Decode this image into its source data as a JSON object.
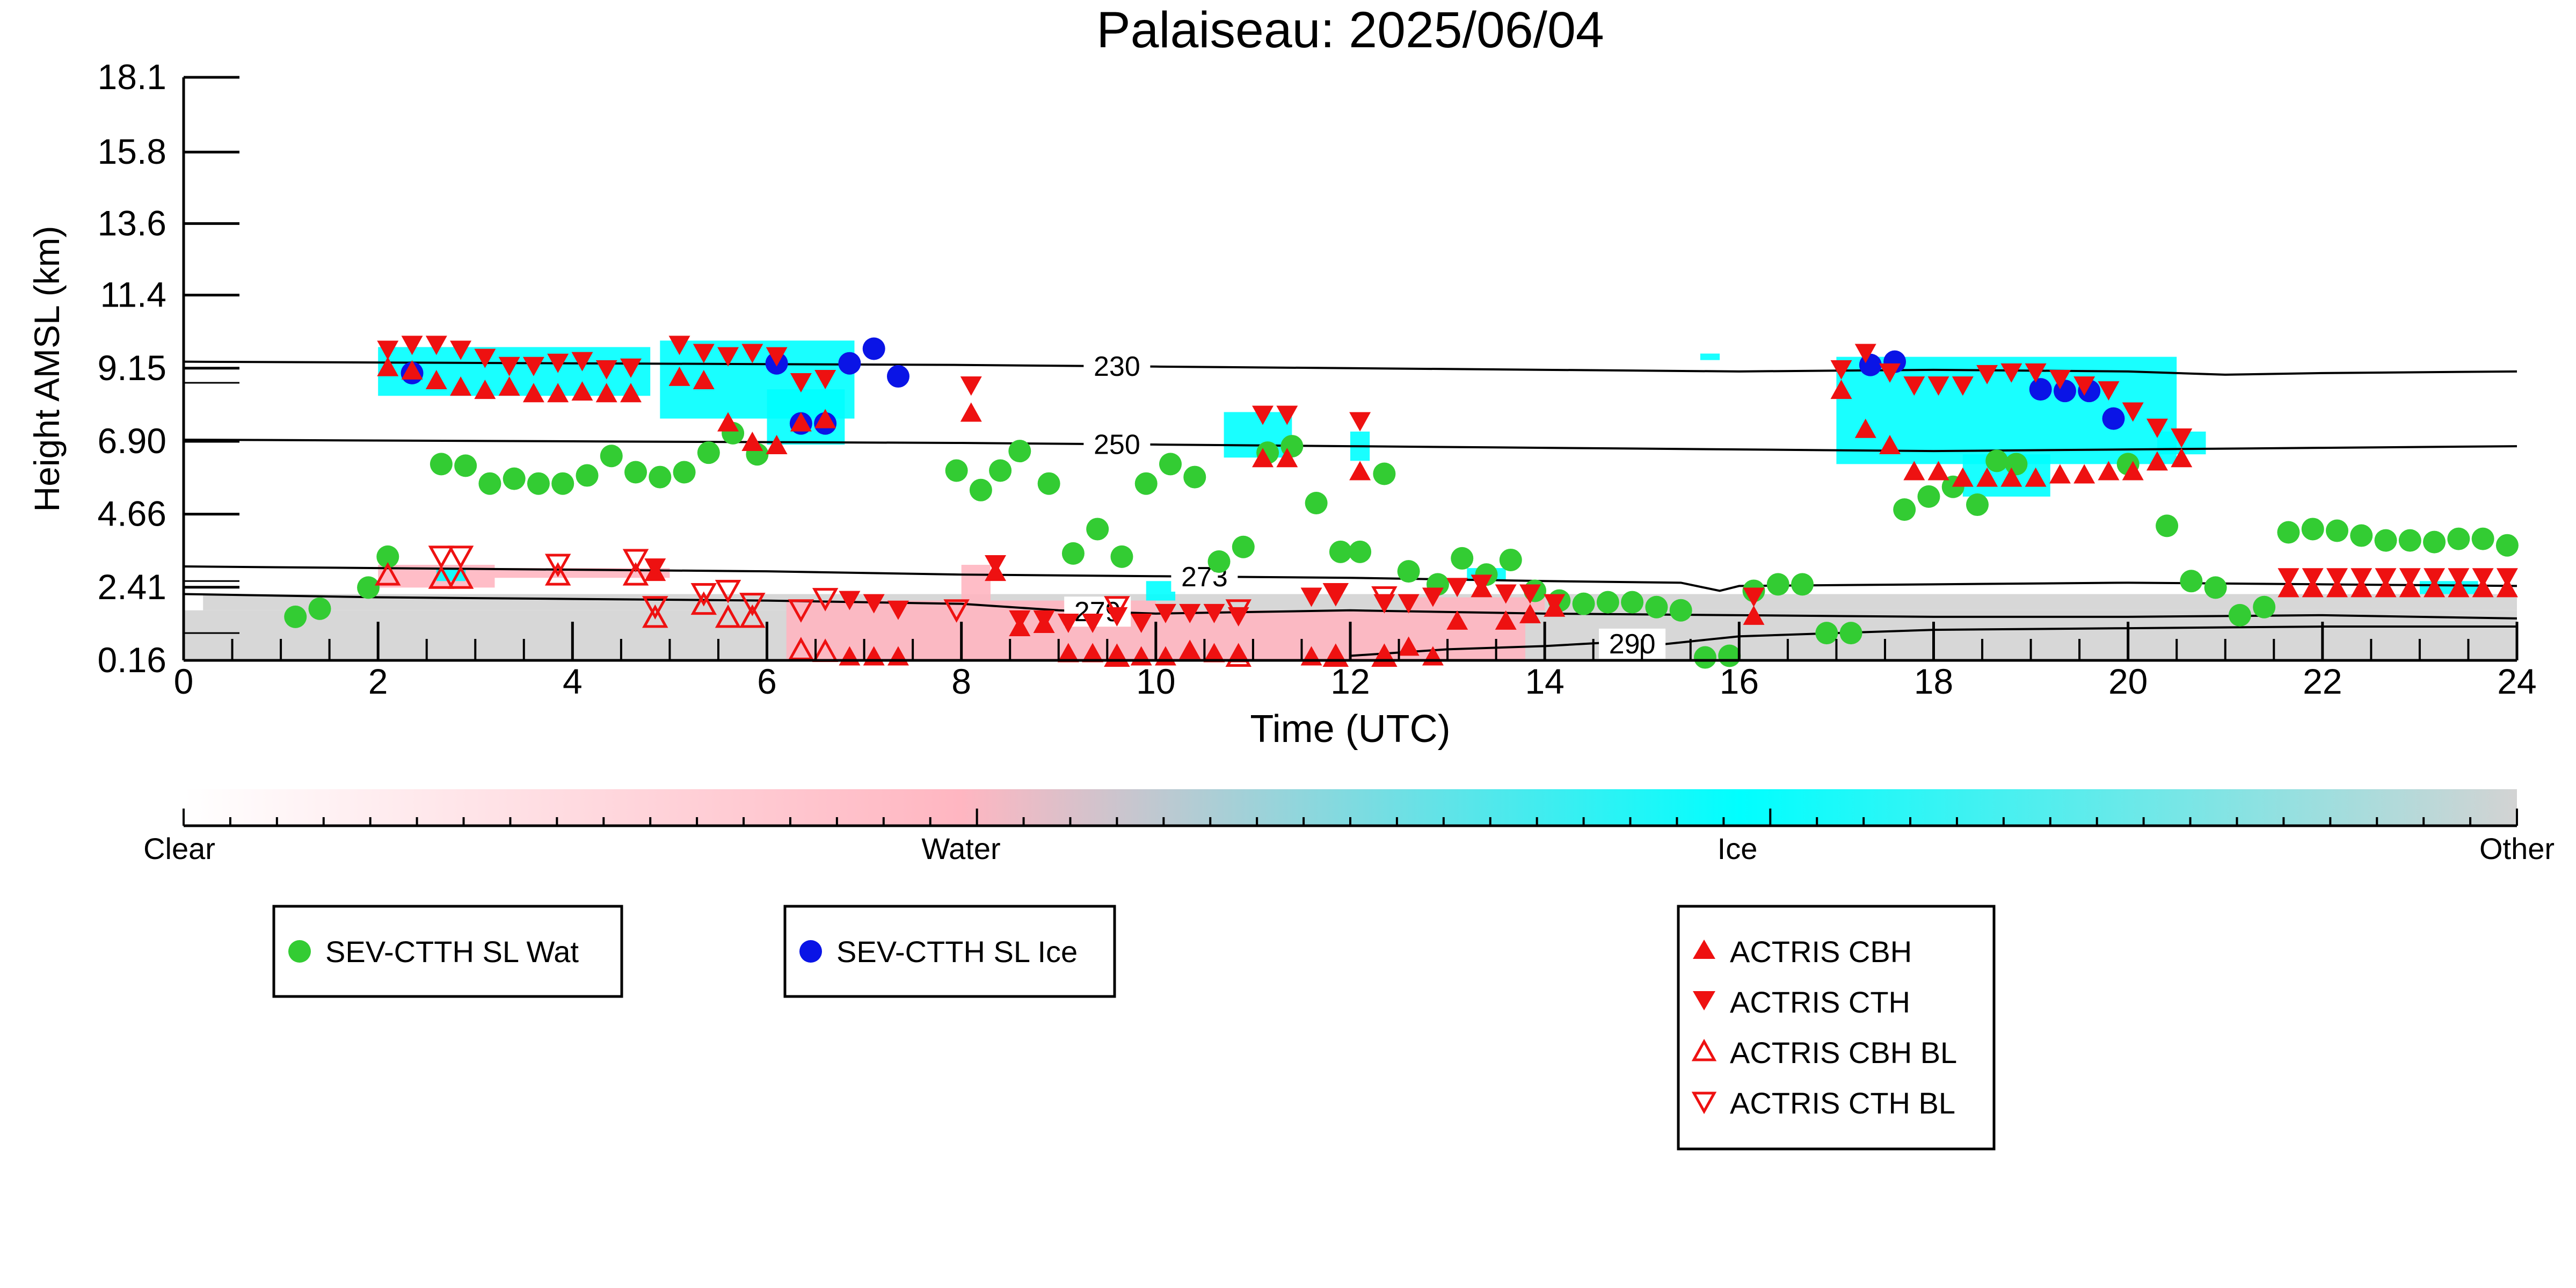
{
  "chart_data": [
    {
      "type": "scatter",
      "title": "Palaiseau: 2025/06/04",
      "xlabel": "Time (UTC)",
      "ylabel": "Height AMSL (km)",
      "xlim": [
        0,
        24
      ],
      "ylim": [
        0.16,
        18.1
      ],
      "xticks": [
        0,
        2,
        4,
        6,
        8,
        10,
        12,
        14,
        16,
        18,
        20,
        22,
        24
      ],
      "yticks": [
        0.16,
        2.41,
        4.66,
        6.9,
        9.15,
        11.4,
        13.6,
        15.8,
        18.1
      ],
      "ytick_labels": [
        "0.16",
        "2.41",
        "4.66",
        "6.90",
        "9.15",
        "11.4",
        "13.6",
        "15.8",
        "18.1"
      ],
      "grid": false,
      "legend_placement": "below",
      "background_classification": {
        "clear_color": "#ffffff",
        "water_color": "#ffb6c1",
        "ice_color": "#00ffff",
        "other_color": "#d3d3d3",
        "other_regions": [
          {
            "x": [
              0,
              24
            ],
            "y": [
              0.16,
              1.7
            ]
          },
          {
            "x": [
              0.2,
              24
            ],
            "y": [
              1.7,
              2.2
            ]
          }
        ],
        "water_regions": [
          {
            "x": [
              2.0,
              3.2
            ],
            "y": [
              2.4,
              3.1
            ]
          },
          {
            "x": [
              3.2,
              5.0
            ],
            "y": [
              2.7,
              3.0
            ]
          },
          {
            "x": [
              6.2,
              10.0
            ],
            "y": [
              0.16,
              2.0
            ]
          },
          {
            "x": [
              10.0,
              13.8
            ],
            "y": [
              0.16,
              1.7
            ]
          },
          {
            "x": [
              8.0,
              8.3
            ],
            "y": [
              2.0,
              3.1
            ]
          },
          {
            "x": [
              12.6,
              14.0
            ],
            "y": [
              1.7,
              2.1
            ]
          }
        ],
        "ice_regions": [
          {
            "x": [
              2.0,
              4.8
            ],
            "y": [
              8.3,
              9.8
            ]
          },
          {
            "x": [
              4.9,
              6.9
            ],
            "y": [
              7.6,
              10.0
            ]
          },
          {
            "x": [
              6.0,
              6.8
            ],
            "y": [
              6.8,
              8.5
            ]
          },
          {
            "x": [
              10.7,
              11.4
            ],
            "y": [
              6.4,
              7.8
            ]
          },
          {
            "x": [
              12.0,
              12.2
            ],
            "y": [
              6.3,
              7.2
            ]
          },
          {
            "x": [
              17.0,
              20.5
            ],
            "y": [
              6.2,
              9.5
            ]
          },
          {
            "x": [
              18.3,
              19.2
            ],
            "y": [
              5.2,
              6.5
            ]
          },
          {
            "x": [
              20.3,
              20.8
            ],
            "y": [
              6.5,
              7.2
            ]
          },
          {
            "x": [
              2.6,
              2.9
            ],
            "y": [
              2.6,
              3.0
            ]
          },
          {
            "x": [
              9.9,
              10.2
            ],
            "y": [
              2.0,
              2.6
            ]
          },
          {
            "x": [
              13.2,
              13.6
            ],
            "y": [
              2.6,
              3.0
            ]
          },
          {
            "x": [
              23.0,
              23.6
            ],
            "y": [
              2.2,
              2.6
            ]
          },
          {
            "x": [
              15.6,
              15.8
            ],
            "y": [
              9.4,
              9.6
            ]
          }
        ]
      },
      "temperature_contours": [
        {
          "label": "230",
          "label_x": 9.6,
          "x": [
            0,
            4,
            8,
            10,
            12,
            14,
            16,
            18,
            20,
            21,
            22,
            24
          ],
          "y": [
            9.35,
            9.3,
            9.25,
            9.2,
            9.15,
            9.1,
            9.05,
            9.1,
            9.05,
            8.95,
            9.0,
            9.05
          ]
        },
        {
          "label": "250",
          "label_x": 9.6,
          "x": [
            0,
            4,
            8,
            10,
            12,
            14,
            16,
            18,
            20,
            22,
            24
          ],
          "y": [
            6.95,
            6.9,
            6.85,
            6.8,
            6.75,
            6.7,
            6.65,
            6.6,
            6.65,
            6.7,
            6.75
          ]
        },
        {
          "label": "273",
          "label_x": 10.5,
          "x": [
            0,
            2,
            4,
            6,
            8,
            10,
            12,
            14,
            15.4,
            15.8,
            16,
            18,
            20,
            22,
            24
          ],
          "y": [
            3.05,
            3.0,
            2.95,
            2.9,
            2.8,
            2.75,
            2.7,
            2.6,
            2.55,
            2.3,
            2.45,
            2.5,
            2.55,
            2.5,
            2.45
          ]
        },
        {
          "label": "279",
          "label_x": 9.4,
          "x": [
            0,
            2,
            4,
            6,
            8,
            9,
            10,
            12,
            14,
            16,
            18,
            20,
            22,
            24
          ],
          "y": [
            2.2,
            2.1,
            2.05,
            2.0,
            1.9,
            1.7,
            1.6,
            1.7,
            1.6,
            1.55,
            1.5,
            1.5,
            1.55,
            1.45
          ]
        },
        {
          "label": "290",
          "label_x": 14.9,
          "x": [
            12,
            13,
            14,
            14.6,
            15.2,
            16,
            17,
            18,
            20,
            22,
            24
          ],
          "y": [
            0.3,
            0.5,
            0.6,
            0.7,
            0.65,
            0.9,
            1.0,
            1.1,
            1.15,
            1.2,
            1.2
          ]
        }
      ],
      "series": [
        {
          "name": "SEV-CTTH SL Wat",
          "marker": "circle",
          "color": "#33cc33",
          "x": [
            1.15,
            1.4,
            1.9,
            2.1,
            2.65,
            2.9,
            3.15,
            3.4,
            3.65,
            3.9,
            4.15,
            4.4,
            4.65,
            4.9,
            5.15,
            5.4,
            5.65,
            5.9,
            7.95,
            8.2,
            8.4,
            8.6,
            8.9,
            9.15,
            9.4,
            9.65,
            9.9,
            10.15,
            10.4,
            10.65,
            10.9,
            11.15,
            11.4,
            11.65,
            11.9,
            12.1,
            12.35,
            12.6,
            12.9,
            13.15,
            13.4,
            13.65,
            13.9,
            14.15,
            14.4,
            14.65,
            14.9,
            15.15,
            15.4,
            15.65,
            15.9,
            16.15,
            16.4,
            16.65,
            16.9,
            17.15,
            17.7,
            17.95,
            18.2,
            18.45,
            18.65,
            18.85,
            20.0,
            20.4,
            20.65,
            20.9,
            21.15,
            21.4,
            21.65,
            21.9,
            22.15,
            22.4,
            22.65,
            22.9,
            23.15,
            23.4,
            23.65,
            23.9
          ],
          "y": [
            1.5,
            1.75,
            2.4,
            3.35,
            6.2,
            6.15,
            5.6,
            5.75,
            5.6,
            5.6,
            5.85,
            6.45,
            5.95,
            5.8,
            5.95,
            6.55,
            7.15,
            6.5,
            6.0,
            5.4,
            6.0,
            6.6,
            5.6,
            3.45,
            4.2,
            3.35,
            5.6,
            6.2,
            5.8,
            3.2,
            3.65,
            6.55,
            6.75,
            5.0,
            3.5,
            3.5,
            5.9,
            2.9,
            2.5,
            3.3,
            2.8,
            3.25,
            2.3,
            2.0,
            1.9,
            1.95,
            1.95,
            1.8,
            1.7,
            0.25,
            0.3,
            2.3,
            2.5,
            2.5,
            1.0,
            1.0,
            4.8,
            5.2,
            5.5,
            4.95,
            6.3,
            6.2,
            6.2,
            4.3,
            2.6,
            2.4,
            1.55,
            1.8,
            4.1,
            4.2,
            4.15,
            4.0,
            3.85,
            3.85,
            3.8,
            3.9,
            3.9,
            3.7
          ]
        },
        {
          "name": "SEV-CTTH SL Ice",
          "marker": "circle",
          "color": "#0a14e6",
          "x": [
            2.35,
            6.1,
            6.35,
            6.6,
            6.85,
            7.1,
            7.35,
            17.35,
            17.6,
            19.1,
            19.35,
            19.6,
            19.85
          ],
          "y": [
            9.0,
            9.3,
            7.45,
            7.45,
            9.3,
            9.75,
            8.9,
            9.25,
            9.35,
            8.5,
            8.45,
            8.45,
            7.6
          ]
        },
        {
          "name": "ACTRIS CBH",
          "marker": "triangle-up",
          "color": "#ee1111",
          "filled": true,
          "x": [
            2.1,
            2.35,
            2.6,
            2.85,
            3.1,
            3.35,
            3.6,
            3.85,
            4.1,
            4.35,
            4.6,
            4.85,
            5.1,
            5.35,
            5.6,
            5.85,
            6.1,
            6.35,
            6.6,
            6.85,
            7.1,
            7.35,
            8.1,
            8.35,
            8.6,
            8.85,
            9.1,
            9.35,
            9.6,
            9.85,
            10.1,
            10.35,
            10.6,
            10.85,
            11.1,
            11.35,
            11.6,
            11.85,
            12.1,
            12.35,
            12.6,
            12.85,
            13.1,
            13.35,
            13.6,
            13.85,
            14.1,
            16.15,
            17.05,
            17.3,
            17.55,
            17.8,
            18.05,
            18.3,
            18.55,
            18.8,
            19.05,
            19.3,
            19.55,
            19.8,
            20.05,
            20.3,
            20.55,
            21.65,
            21.9,
            22.15,
            22.4,
            22.65,
            22.9,
            23.15,
            23.4,
            23.65,
            23.9
          ],
          "y": [
            9.2,
            9.1,
            8.8,
            8.6,
            8.5,
            8.6,
            8.4,
            8.4,
            8.45,
            8.4,
            8.4,
            2.9,
            8.9,
            8.8,
            7.5,
            6.9,
            6.8,
            7.5,
            7.6,
            0.3,
            0.3,
            0.3,
            7.8,
            2.9,
            1.2,
            1.3,
            0.4,
            0.4,
            0.3,
            0.3,
            0.3,
            0.5,
            0.4,
            0.4,
            6.4,
            6.4,
            0.3,
            0.3,
            6.0,
            0.3,
            0.6,
            0.3,
            1.4,
            2.4,
            1.4,
            1.6,
            1.8,
            1.55,
            8.5,
            7.3,
            6.8,
            6.0,
            6.0,
            5.8,
            5.8,
            5.8,
            5.8,
            5.9,
            5.9,
            6.0,
            6.0,
            6.3,
            6.4,
            2.4,
            2.4,
            2.4,
            2.4,
            2.4,
            2.4,
            2.4,
            2.4,
            2.4,
            2.4
          ]
        },
        {
          "name": "ACTRIS CTH",
          "marker": "triangle-down",
          "color": "#ee1111",
          "filled": true,
          "x": [
            2.1,
            2.35,
            2.6,
            2.85,
            3.1,
            3.35,
            3.6,
            3.85,
            4.1,
            4.35,
            4.6,
            4.85,
            5.1,
            5.35,
            5.6,
            5.85,
            6.1,
            6.35,
            6.6,
            6.85,
            7.1,
            7.35,
            8.1,
            8.35,
            8.6,
            8.85,
            9.1,
            9.35,
            9.6,
            9.85,
            10.1,
            10.35,
            10.6,
            10.85,
            11.1,
            11.35,
            11.6,
            11.85,
            12.1,
            12.35,
            12.6,
            12.85,
            13.1,
            13.35,
            13.6,
            13.85,
            14.1,
            16.15,
            17.05,
            17.3,
            17.55,
            17.8,
            18.05,
            18.3,
            18.55,
            18.8,
            19.05,
            19.3,
            19.55,
            19.8,
            20.05,
            20.3,
            20.55,
            21.65,
            21.9,
            22.15,
            22.4,
            22.65,
            22.9,
            23.15,
            23.4,
            23.65,
            23.9
          ],
          "y": [
            9.7,
            9.85,
            9.85,
            9.7,
            9.45,
            9.2,
            9.2,
            9.3,
            9.35,
            9.1,
            9.15,
            3.0,
            9.85,
            9.6,
            9.5,
            9.6,
            9.5,
            8.7,
            8.8,
            2.0,
            1.9,
            1.7,
            8.6,
            3.1,
            1.4,
            1.4,
            1.3,
            1.3,
            1.5,
            1.3,
            1.6,
            1.6,
            1.6,
            1.5,
            7.7,
            7.7,
            2.1,
            2.2,
            7.5,
            1.9,
            1.9,
            2.1,
            2.4,
            2.5,
            2.2,
            2.2,
            1.9,
            2.1,
            9.1,
            9.6,
            9.0,
            8.6,
            8.6,
            8.6,
            8.95,
            9.0,
            9.0,
            8.8,
            8.6,
            8.45,
            7.8,
            7.3,
            7.0,
            2.7,
            2.7,
            2.7,
            2.7,
            2.7,
            2.7,
            2.7,
            2.7,
            2.7,
            2.7
          ]
        },
        {
          "name": "ACTRIS CBH BL",
          "marker": "triangle-up",
          "color": "#ee1111",
          "filled": false,
          "x": [
            2.1,
            2.65,
            2.85,
            3.85,
            4.65,
            4.85,
            5.35,
            5.6,
            5.85,
            6.35,
            6.6,
            9.6,
            10.85,
            11.85,
            12.35
          ],
          "y": [
            2.8,
            2.7,
            2.7,
            2.8,
            2.8,
            1.5,
            1.9,
            1.5,
            1.5,
            0.5,
            0.45,
            0.3,
            0.3,
            0.3,
            0.3
          ]
        },
        {
          "name": "ACTRIS CTH BL",
          "marker": "triangle-down",
          "color": "#ee1111",
          "filled": false,
          "x": [
            2.65,
            2.85,
            3.85,
            4.65,
            4.85,
            5.35,
            5.6,
            5.85,
            6.35,
            6.6,
            7.95,
            9.6,
            10.85,
            11.85,
            12.35
          ],
          "y": [
            3.35,
            3.35,
            3.1,
            3.25,
            1.8,
            2.2,
            2.3,
            1.9,
            1.7,
            2.05,
            1.7,
            1.8,
            1.7,
            2.2,
            2.1
          ]
        }
      ]
    },
    {
      "type": "heatmap",
      "labels": [
        "Clear",
        "Water",
        "Ice",
        "Other"
      ],
      "colors": [
        "#ffffff",
        "#ffb6c1",
        "#00ffff",
        "#d3d3d3"
      ]
    }
  ],
  "legends": [
    {
      "entries": [
        "SEV-CTTH SL Wat"
      ]
    },
    {
      "entries": [
        "SEV-CTTH SL Ice"
      ]
    },
    {
      "entries": [
        "ACTRIS CBH",
        "ACTRIS CTH",
        "ACTRIS CBH BL",
        "ACTRIS CTH BL"
      ]
    }
  ]
}
